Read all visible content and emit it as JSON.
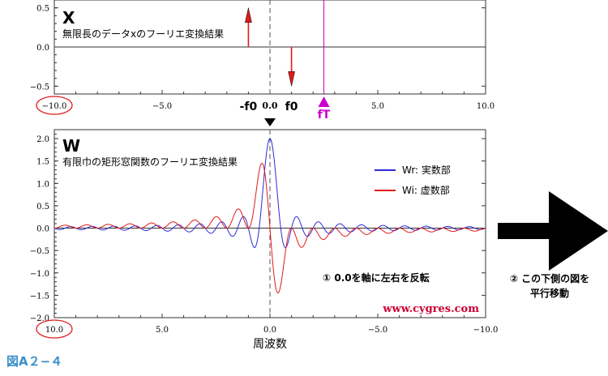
{
  "figure_label": "図A２−４",
  "chart_data": [
    {
      "type": "line",
      "panel_letter": "X",
      "subtitle": "無限長のデータxのフーリエ変換結果",
      "xlim": [
        -10,
        10
      ],
      "ylim": [
        -0.6,
        0.6
      ],
      "x_ticks": [
        -10.0,
        -5.0,
        0.0,
        5.0,
        10.0
      ],
      "x_tick_labels": [
        "−10.0",
        "−5.0",
        "0.0",
        "5.0",
        "10.0"
      ],
      "y_ticks": [
        -0.5,
        0.0,
        0.5
      ],
      "y_tick_labels": [
        "−0.5",
        "0.0",
        "0.5"
      ],
      "grid": false,
      "circled_tick_label": "−10.0",
      "spikes": [
        {
          "x": -1.0,
          "value": 0.5,
          "color": "#e01a1a"
        },
        {
          "x": 1.0,
          "value": -0.5,
          "color": "#e01a1a"
        }
      ],
      "markers": [
        {
          "x": -1.0,
          "label": "-f0"
        },
        {
          "x": 1.0,
          "label": "f0"
        },
        {
          "x": 2.5,
          "label": "fT",
          "color": "#cc00cc"
        }
      ],
      "vertical_lines": [
        {
          "x": 0.0,
          "style": "dashed",
          "color": "#555555"
        },
        {
          "x": 2.5,
          "style": "solid",
          "color": "#cc00cc"
        }
      ]
    },
    {
      "type": "line",
      "panel_letter": "W",
      "subtitle": "有限巾の矩形窓関数のフーリエ変換結果",
      "xlabel": "周波数",
      "xlim": [
        10,
        -10
      ],
      "ylim": [
        -2.0,
        2.2
      ],
      "x_ticks": [
        10.0,
        5.0,
        0.0,
        -5.0,
        -10.0
      ],
      "x_tick_labels": [
        "10.0",
        "5.0",
        "0.0",
        "−5.0",
        "−10.0"
      ],
      "y_ticks": [
        -2.0,
        -1.5,
        -1.0,
        -0.5,
        0.0,
        0.5,
        1.0,
        1.5,
        2.0
      ],
      "y_tick_labels": [
        "−2.0",
        "−1.5",
        "−1.0",
        "−0.5",
        "0.0",
        "0.5",
        "1.0",
        "1.5",
        "2.0"
      ],
      "grid": false,
      "circled_tick_label": "10.0",
      "legend_position": "top-right",
      "window_length": 2.0,
      "series": [
        {
          "name": "Wr: 実数部",
          "color": "#2b2bd8",
          "peak": 2.0
        },
        {
          "name": "Wi: 虚数部",
          "color": "#e01a1a",
          "peak_positive": 1.4,
          "peak_negative": -1.4
        }
      ],
      "annotation": "① 0.0を軸に左右を反転",
      "watermark": "www.cygres.com",
      "top_marker": "▼"
    }
  ],
  "side_note": {
    "line1": "② この下側の図を",
    "line2": "平行移動"
  },
  "colors": {
    "red": "#e01a1a",
    "blue": "#2b2bd8",
    "magenta": "#cc00cc",
    "watermark": "#cc0033"
  }
}
